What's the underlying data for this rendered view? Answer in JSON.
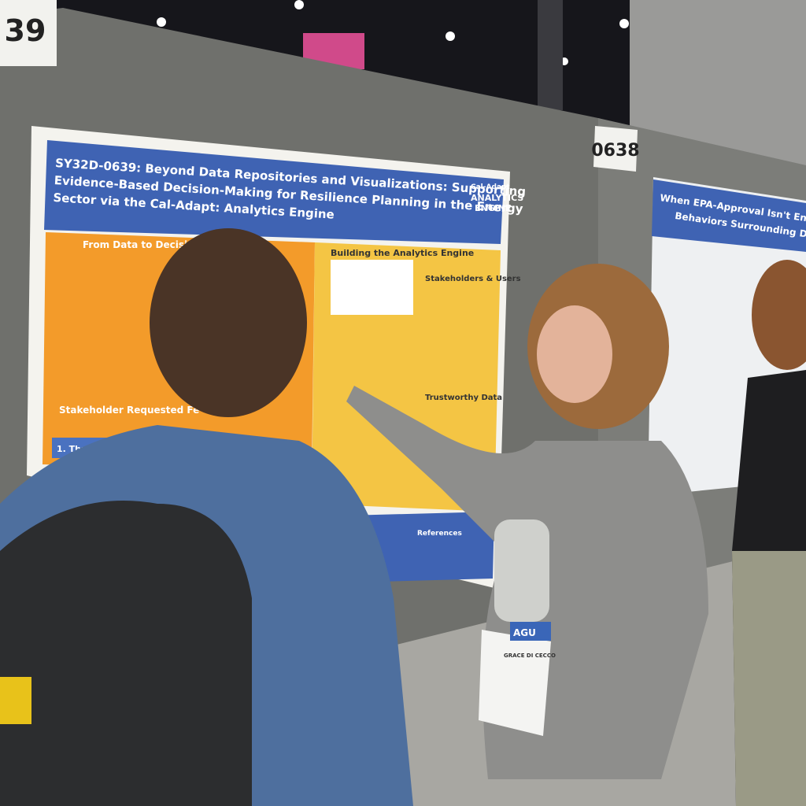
{
  "booths": [
    "39",
    "0638"
  ],
  "poster_left": {
    "title_lines": [
      "SY32D-0639: Beyond Data Repositories and Visualizations: Supporting",
      "Evidence-Based Decision-Making for Resilience Planning in the Energy",
      "Sector via the Cal-Adapt: Analytics Engine"
    ],
    "logo": [
      "Cal-Adapt",
      "ANALYTICS",
      "ENGINE"
    ],
    "sections": [
      "From Data to Decisi",
      "Building the Analytics Engine",
      "Stakeholders & Users",
      "Trustworthy Data",
      "Stakeholder Requested Fe",
      "References"
    ],
    "feature": "1. Threshold & Asset Vuln"
  },
  "poster_right": {
    "title_lines": [
      "When EPA-Approval Isn't Enough: Factors Informing",
      "Behaviors Surrounding Drinking Water in Era"
    ]
  },
  "badge": {
    "org": "AGU",
    "name": "GRACE DI CECCO"
  }
}
